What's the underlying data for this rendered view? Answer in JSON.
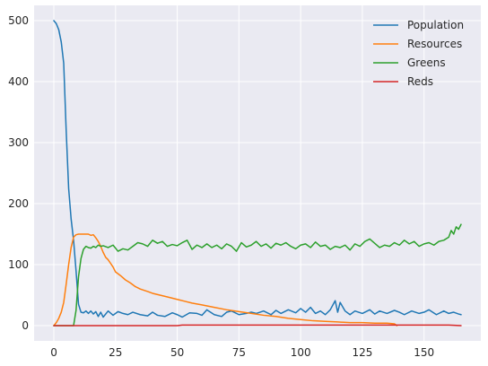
{
  "chart_data": {
    "type": "line",
    "title": "",
    "xlabel": "",
    "ylabel": "",
    "xlim": [
      -8,
      173
    ],
    "ylim": [
      -25,
      525
    ],
    "xticks": [
      0,
      25,
      50,
      75,
      100,
      125,
      150
    ],
    "yticks": [
      0,
      100,
      200,
      300,
      400,
      500
    ],
    "grid": true,
    "legend_position": "top-right",
    "background_color": "#eaeaf2",
    "series": [
      {
        "name": "Population",
        "color": "#1f77b4",
        "x": [
          0,
          1,
          2,
          3,
          4,
          5,
          6,
          7,
          8,
          9,
          10,
          11,
          12,
          13,
          14,
          15,
          16,
          17,
          18,
          19,
          20,
          22,
          24,
          26,
          28,
          30,
          32,
          35,
          38,
          40,
          42,
          45,
          48,
          50,
          52,
          55,
          58,
          60,
          62,
          65,
          68,
          70,
          72,
          75,
          78,
          80,
          82,
          85,
          88,
          90,
          92,
          95,
          98,
          100,
          102,
          104,
          106,
          108,
          110,
          112,
          114,
          115,
          116,
          118,
          120,
          122,
          125,
          128,
          130,
          132,
          135,
          138,
          140,
          142,
          145,
          148,
          150,
          152,
          155,
          158,
          160,
          162,
          164,
          165
        ],
        "y": [
          500,
          495,
          485,
          465,
          430,
          320,
          225,
          175,
          140,
          90,
          35,
          22,
          21,
          24,
          20,
          24,
          19,
          23,
          15,
          22,
          14,
          24,
          17,
          23,
          20,
          18,
          22,
          18,
          16,
          22,
          17,
          15,
          21,
          18,
          14,
          21,
          20,
          17,
          26,
          18,
          15,
          22,
          24,
          18,
          20,
          22,
          20,
          24,
          18,
          25,
          20,
          26,
          21,
          28,
          22,
          30,
          20,
          24,
          18,
          26,
          41,
          22,
          38,
          24,
          18,
          24,
          20,
          26,
          19,
          24,
          20,
          25,
          22,
          18,
          24,
          20,
          22,
          26,
          18,
          24,
          20,
          22,
          19,
          18
        ]
      },
      {
        "name": "Resources",
        "color": "#ff7f0e",
        "x": [
          0,
          1,
          2,
          3,
          4,
          5,
          6,
          7,
          8,
          9,
          10,
          11,
          12,
          13,
          14,
          15,
          16,
          17,
          18,
          19,
          20,
          21,
          22,
          23,
          24,
          25,
          27,
          29,
          31,
          33,
          35,
          38,
          40,
          43,
          46,
          50,
          53,
          56,
          60,
          65,
          70,
          75,
          80,
          85,
          90,
          95,
          100,
          105,
          110,
          115,
          120,
          125,
          130,
          135,
          138,
          139
        ],
        "y": [
          0,
          5,
          12,
          22,
          38,
          68,
          100,
          128,
          145,
          149,
          150,
          150,
          150,
          150,
          150,
          148,
          149,
          144,
          138,
          130,
          120,
          112,
          108,
          102,
          96,
          88,
          82,
          75,
          70,
          64,
          60,
          56,
          53,
          50,
          47,
          43,
          40,
          37,
          34,
          30,
          26,
          23,
          20,
          17,
          15,
          12,
          10,
          8,
          7,
          6,
          5,
          5,
          4,
          4,
          3,
          0
        ]
      },
      {
        "name": "Greens",
        "color": "#2ca02c",
        "x": [
          0,
          1,
          2,
          3,
          4,
          5,
          6,
          7,
          8,
          9,
          10,
          11,
          12,
          13,
          14,
          15,
          16,
          17,
          18,
          19,
          20,
          22,
          24,
          26,
          28,
          30,
          32,
          34,
          36,
          38,
          40,
          42,
          44,
          46,
          48,
          50,
          52,
          54,
          56,
          58,
          60,
          62,
          64,
          66,
          68,
          70,
          72,
          74,
          76,
          78,
          80,
          82,
          84,
          86,
          88,
          90,
          92,
          94,
          96,
          98,
          100,
          102,
          104,
          106,
          108,
          110,
          112,
          114,
          116,
          118,
          120,
          122,
          124,
          126,
          128,
          130,
          132,
          134,
          136,
          138,
          140,
          142,
          144,
          146,
          148,
          150,
          152,
          154,
          156,
          158,
          160,
          161,
          162,
          163,
          164,
          165
        ],
        "y": [
          0,
          0,
          0,
          0,
          0,
          0,
          0,
          0,
          0,
          25,
          80,
          110,
          125,
          130,
          128,
          127,
          130,
          128,
          132,
          130,
          131,
          128,
          132,
          122,
          126,
          124,
          130,
          136,
          134,
          130,
          140,
          135,
          138,
          130,
          133,
          131,
          136,
          140,
          125,
          132,
          128,
          134,
          128,
          132,
          126,
          134,
          130,
          122,
          136,
          129,
          132,
          138,
          130,
          134,
          127,
          135,
          132,
          136,
          130,
          126,
          132,
          134,
          128,
          137,
          130,
          132,
          125,
          130,
          128,
          132,
          124,
          134,
          130,
          138,
          142,
          135,
          128,
          132,
          130,
          136,
          132,
          140,
          134,
          138,
          130,
          134,
          136,
          132,
          138,
          140,
          145,
          156,
          150,
          162,
          158,
          166
        ]
      },
      {
        "name": "Reds",
        "color": "#d62728",
        "x": [
          0,
          10,
          20,
          30,
          40,
          50,
          52,
          60,
          70,
          80,
          90,
          100,
          110,
          120,
          130,
          140,
          150,
          160,
          165
        ],
        "y": [
          0,
          0,
          0,
          0,
          0,
          0,
          1,
          1,
          1,
          1,
          1,
          1,
          1,
          1,
          1,
          1,
          1,
          1,
          0
        ]
      }
    ]
  }
}
